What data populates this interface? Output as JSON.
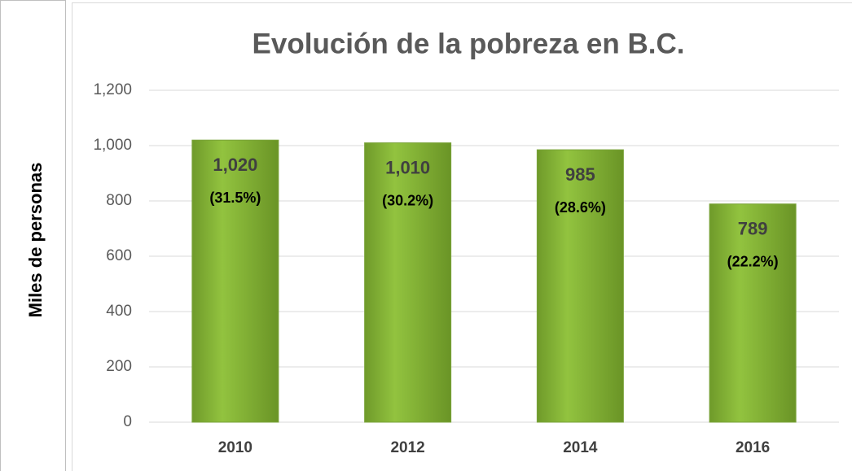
{
  "chart_data": {
    "type": "bar",
    "title": "Evolución de la pobreza en B.C.",
    "y_label": "Miles de personas",
    "categories": [
      "2010",
      "2012",
      "2014",
      "2016"
    ],
    "values": [
      1020,
      1010,
      985,
      789
    ],
    "value_labels": [
      "1,020",
      "1,010",
      "985",
      "789"
    ],
    "share_labels": [
      "(31.5%)",
      "(30.2%)",
      "(28.6%)",
      "(22.2%)"
    ],
    "color": "#92c33f",
    "ylim": [
      0,
      1200
    ],
    "yticks": [
      0,
      200,
      400,
      600,
      800,
      {
        "value": 1000,
        "label": "1,000"
      },
      {
        "value": 1200,
        "label": "1,200"
      }
    ],
    "grid": true
  }
}
